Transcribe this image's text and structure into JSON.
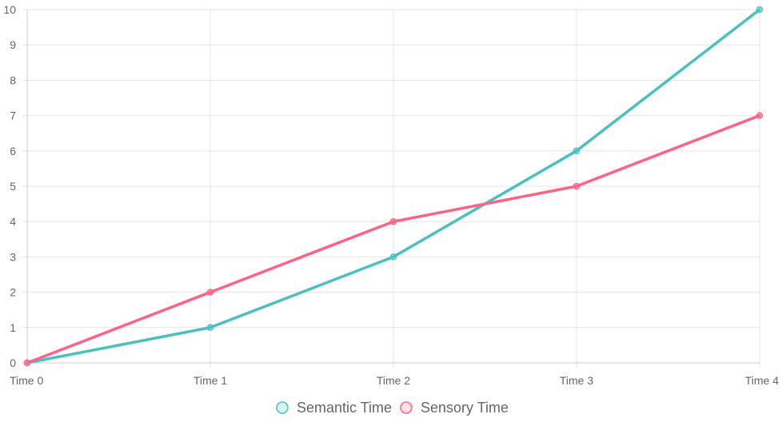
{
  "chart_data": {
    "type": "line",
    "title": "",
    "xlabel": "",
    "ylabel": "",
    "categories": [
      "Time 0",
      "Time 1",
      "Time 2",
      "Time 3",
      "Time 4"
    ],
    "ylim": [
      0,
      10
    ],
    "yticks": [
      0,
      1,
      2,
      3,
      4,
      5,
      6,
      7,
      8,
      9,
      10
    ],
    "grid": true,
    "legend_position": "bottom",
    "series": [
      {
        "name": "Semantic Time",
        "values": [
          0,
          1,
          3,
          6,
          10
        ],
        "color": "#4bc0c0"
      },
      {
        "name": "Sensory Time",
        "values": [
          0,
          2,
          4,
          5,
          7
        ],
        "color": "#ff6384"
      }
    ]
  }
}
